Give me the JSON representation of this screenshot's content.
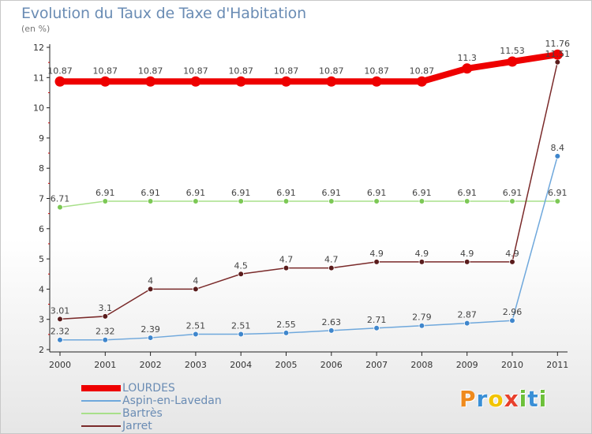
{
  "header": {
    "title": "Evolution du Taux de Taxe d'Habitation",
    "unit": "(en %)"
  },
  "logo": {
    "letters": [
      "P",
      "r",
      "o",
      "x",
      "i",
      "t",
      "i"
    ],
    "colors": [
      "#ef8a1c",
      "#3a8fd6",
      "#f2c400",
      "#e8402c",
      "#6cc03a",
      "#3a8fd6",
      "#6cc03a"
    ]
  },
  "chart_data": {
    "type": "line",
    "title": "Evolution du Taux de Taxe d'Habitation",
    "ylabel": "(en %)",
    "xlabel": "",
    "x": [
      "2000",
      "2001",
      "2002",
      "2003",
      "2004",
      "2005",
      "2006",
      "2007",
      "2008",
      "2009",
      "2010",
      "2011"
    ],
    "ylim": [
      2,
      12
    ],
    "yticks": [
      "2",
      "3",
      "4",
      "5",
      "6",
      "7",
      "8",
      "9",
      "10",
      "11",
      "12"
    ],
    "grid": false,
    "legend_position": "bottom-left",
    "series": [
      {
        "name": "LOURDES",
        "color": "#ee0000",
        "emphasis": true,
        "values": [
          10.87,
          10.87,
          10.87,
          10.87,
          10.87,
          10.87,
          10.87,
          10.87,
          10.87,
          11.3,
          11.53,
          11.76
        ],
        "labels": [
          "10.87",
          "10.87",
          "10.87",
          "10.87",
          "10.87",
          "10.87",
          "10.87",
          "10.87",
          "10.87",
          "11.3",
          "11.53",
          "11.76"
        ]
      },
      {
        "name": "Aspin-en-Lavedan",
        "color": "#6fa8dc",
        "marker_color": "#3f86cc",
        "values": [
          2.32,
          2.32,
          2.39,
          2.51,
          2.51,
          2.55,
          2.63,
          2.71,
          2.79,
          2.87,
          2.96,
          8.4
        ],
        "labels": [
          "2.32",
          "2.32",
          "2.39",
          "2.51",
          "2.51",
          "2.55",
          "2.63",
          "2.71",
          "2.79",
          "2.87",
          "2.96",
          "8.4"
        ]
      },
      {
        "name": "Bartrès",
        "color": "#a8e08a",
        "marker_color": "#7cc855",
        "values": [
          6.71,
          6.91,
          6.91,
          6.91,
          6.91,
          6.91,
          6.91,
          6.91,
          6.91,
          6.91,
          6.91,
          6.91
        ],
        "labels": [
          "6.71",
          "6.91",
          "6.91",
          "6.91",
          "6.91",
          "6.91",
          "6.91",
          "6.91",
          "6.91",
          "6.91",
          "6.91",
          "6.91"
        ]
      },
      {
        "name": "Jarret",
        "color": "#7a2a2a",
        "marker_color": "#5a1c1c",
        "values": [
          3.01,
          3.1,
          4,
          4,
          4.5,
          4.7,
          4.7,
          4.9,
          4.9,
          4.9,
          4.9,
          11.51
        ],
        "labels": [
          "3.01",
          "3.1",
          "4",
          "4",
          "4.5",
          "4.7",
          "4.7",
          "4.9",
          "4.9",
          "4.9",
          "4.9",
          "11.51"
        ]
      }
    ]
  }
}
